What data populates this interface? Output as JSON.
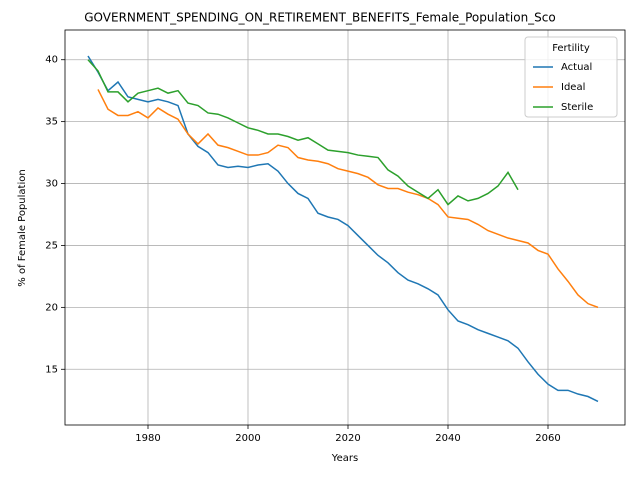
{
  "chart_data": {
    "type": "line",
    "title": "GOVERNMENT_SPENDING_ON_RETIREMENT_BENEFITS_Female_Population_Sco",
    "xlabel": "Years",
    "ylabel": "% of Female Population",
    "legend_title": "Fertility",
    "legend": "upper right",
    "grid": true,
    "xlim": [
      1963.4,
      2075.4
    ],
    "ylim": [
      10.5,
      42.4
    ],
    "xticks": [
      1980,
      2000,
      2020,
      2040,
      2060
    ],
    "yticks": [
      15,
      20,
      25,
      30,
      35,
      40
    ],
    "x": [
      1968,
      1970,
      1972,
      1974,
      1976,
      1978,
      1980,
      1982,
      1984,
      1986,
      1988,
      1990,
      1992,
      1994,
      1996,
      1998,
      2000,
      2002,
      2004,
      2006,
      2008,
      2010,
      2012,
      2014,
      2016,
      2018,
      2020,
      2022,
      2024,
      2026,
      2028,
      2030,
      2032,
      2034,
      2036,
      2038,
      2040,
      2042,
      2044,
      2046,
      2048,
      2050,
      2052,
      2054,
      2056,
      2058,
      2060,
      2062,
      2064,
      2066,
      2068,
      2070
    ],
    "series": [
      {
        "name": "Actual",
        "color": "#1f77b4",
        "values": [
          40.3,
          39.0,
          37.5,
          38.2,
          37.0,
          36.8,
          36.6,
          36.8,
          36.6,
          36.3,
          34.0,
          33.0,
          32.5,
          31.5,
          31.3,
          31.4,
          31.3,
          31.5,
          31.6,
          31.0,
          30.0,
          29.2,
          28.8,
          27.6,
          27.3,
          27.1,
          26.6,
          25.8,
          25.0,
          24.2,
          23.6,
          22.8,
          22.2,
          21.9,
          21.5,
          21.0,
          19.8,
          18.9,
          18.6,
          18.2,
          17.9,
          17.6,
          17.3,
          16.7,
          15.6,
          14.6,
          13.8,
          13.3,
          13.3,
          13.0,
          12.8,
          12.4
        ]
      },
      {
        "name": "Ideal",
        "color": "#ff7f0e",
        "values": [
          null,
          37.6,
          36.0,
          35.5,
          35.5,
          35.8,
          35.3,
          36.1,
          35.6,
          35.2,
          34.0,
          33.2,
          34.0,
          33.1,
          32.9,
          32.6,
          32.3,
          32.3,
          32.5,
          33.1,
          32.9,
          32.1,
          31.9,
          31.8,
          31.6,
          31.2,
          31.0,
          30.8,
          30.5,
          29.9,
          29.6,
          29.6,
          29.3,
          29.1,
          28.8,
          28.3,
          27.3,
          27.2,
          27.1,
          26.7,
          26.2,
          25.9,
          25.6,
          25.4,
          25.2,
          24.6,
          24.3,
          23.1,
          22.1,
          21.0,
          20.3,
          20.0
        ]
      },
      {
        "name": "Sterile",
        "color": "#2ca02c",
        "values": [
          40.0,
          39.1,
          37.4,
          37.4,
          36.6,
          37.3,
          37.5,
          37.7,
          37.3,
          37.5,
          36.5,
          36.3,
          35.7,
          35.6,
          35.3,
          34.9,
          34.5,
          34.3,
          34.0,
          34.0,
          33.8,
          33.5,
          33.7,
          33.2,
          32.7,
          32.6,
          32.5,
          32.3,
          32.2,
          32.1,
          31.1,
          30.6,
          29.8,
          29.3,
          28.8,
          29.5,
          28.3,
          29.0,
          28.6,
          28.8,
          29.2,
          29.8,
          30.9,
          29.5,
          null,
          null,
          null,
          null,
          null,
          null,
          null,
          null
        ]
      }
    ]
  }
}
